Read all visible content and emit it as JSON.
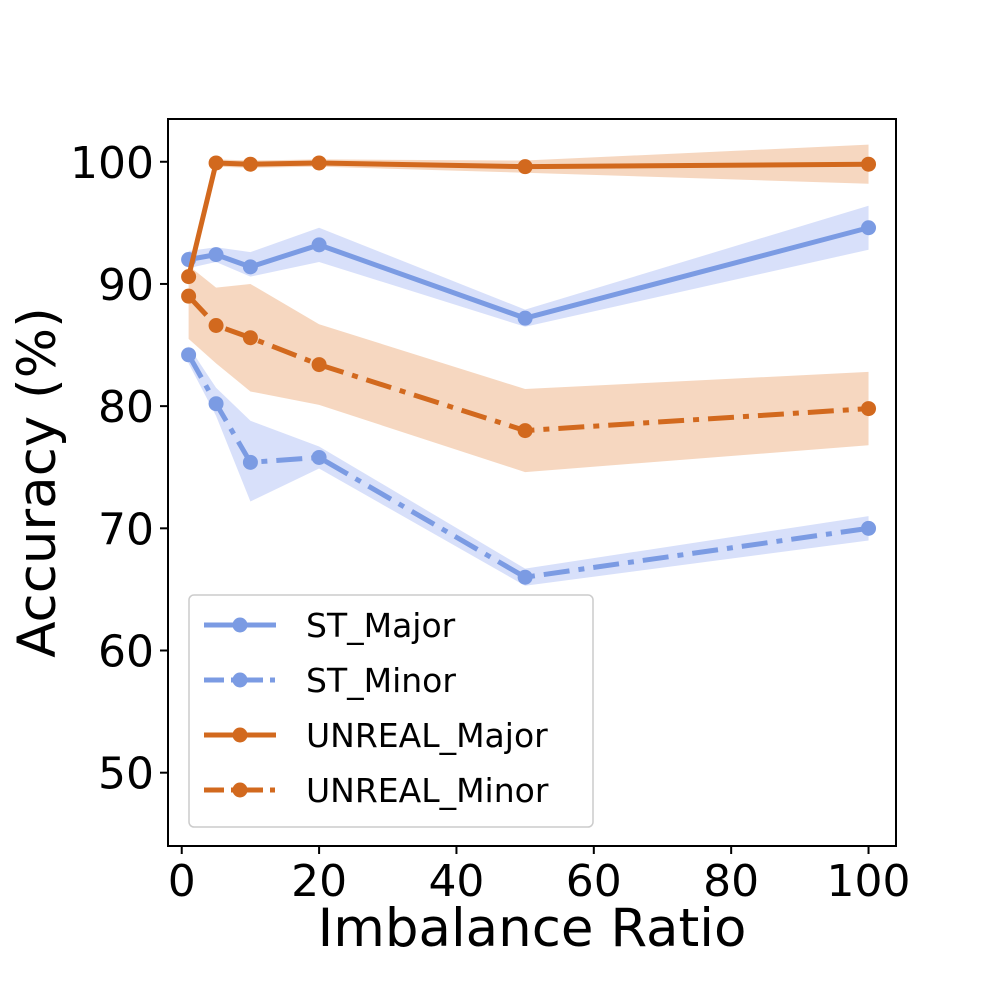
{
  "chart_data": {
    "type": "line",
    "title": "",
    "xlabel": "Imbalance Ratio",
    "ylabel": "Accuracy (%)",
    "xlim": [
      -2,
      104
    ],
    "ylim": [
      44,
      103.5
    ],
    "xticks": [
      0,
      20,
      40,
      60,
      80,
      100
    ],
    "yticks": [
      50,
      60,
      70,
      80,
      90,
      100
    ],
    "grid": false,
    "legend_position": "lower-left",
    "x": [
      1,
      5,
      10,
      20,
      50,
      100
    ],
    "series": [
      {
        "name": "ST_Major",
        "color": "#7b9be3",
        "band_color": "#d6defa",
        "linestyle": "solid",
        "values": [
          92.0,
          92.4,
          91.4,
          93.2,
          87.2,
          94.6
        ],
        "lower": [
          91.3,
          91.8,
          90.6,
          91.8,
          86.5,
          92.8
        ],
        "upper": [
          92.7,
          93.0,
          92.6,
          94.6,
          87.9,
          96.4
        ]
      },
      {
        "name": "ST_Minor",
        "color": "#7b9be3",
        "band_color": "#d6defa",
        "linestyle": "dashdot",
        "values": [
          84.2,
          80.2,
          75.4,
          75.8,
          66.0,
          70.0
        ],
        "lower": [
          83.5,
          79.2,
          72.2,
          74.9,
          65.3,
          69.0
        ],
        "upper": [
          84.9,
          81.5,
          78.8,
          76.7,
          66.7,
          71.0
        ]
      },
      {
        "name": "UNREAL_Major",
        "color": "#d2691e",
        "band_color": "#f6d5bd",
        "linestyle": "solid",
        "values": [
          90.6,
          99.9,
          99.8,
          99.9,
          99.6,
          99.8
        ],
        "lower": [
          90.3,
          99.6,
          99.5,
          99.6,
          99.1,
          98.2
        ],
        "upper": [
          90.9,
          100.2,
          100.1,
          100.2,
          100.1,
          101.4
        ]
      },
      {
        "name": "UNREAL_Minor",
        "color": "#d2691e",
        "band_color": "#f6d5bd",
        "linestyle": "dashdot",
        "values": [
          89.0,
          86.6,
          85.6,
          83.4,
          78.0,
          79.8
        ],
        "lower": [
          85.5,
          83.5,
          81.2,
          80.1,
          74.6,
          76.8
        ],
        "upper": [
          91.5,
          89.7,
          90.0,
          86.7,
          81.4,
          82.8
        ]
      }
    ]
  }
}
